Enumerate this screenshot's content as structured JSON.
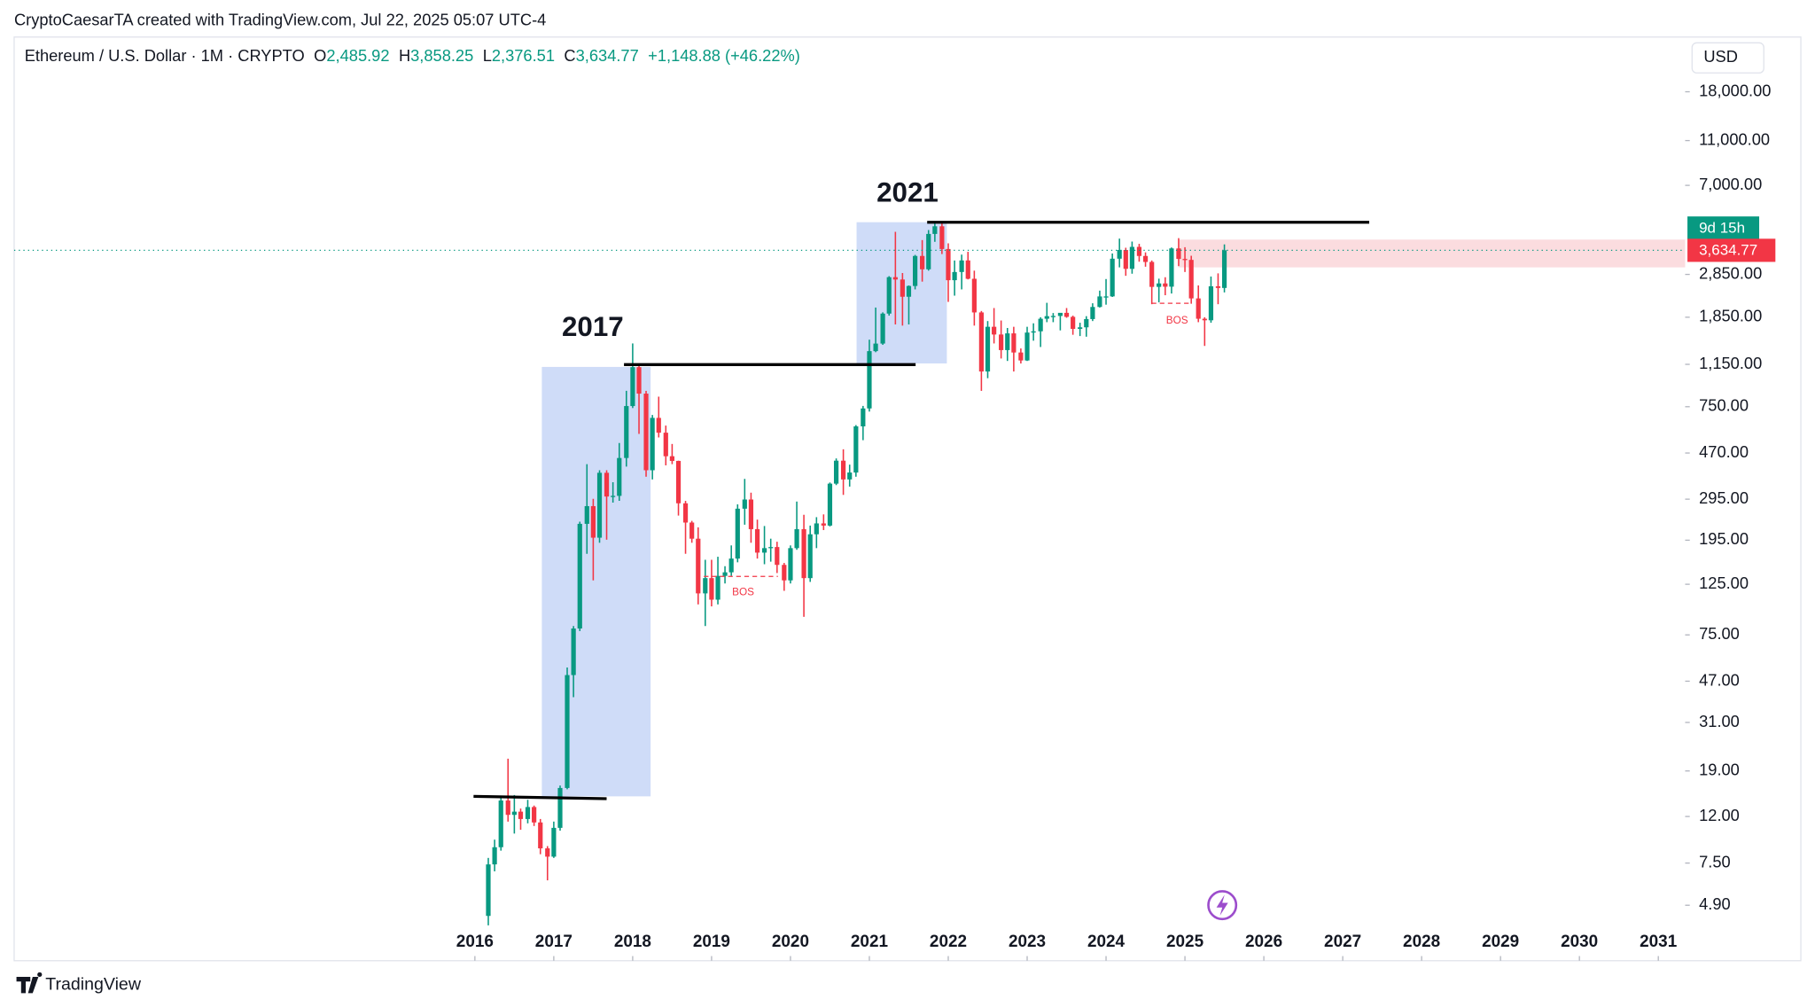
{
  "header": {
    "credit": "CryptoCaesarTA created with TradingView.com, Jul 22, 2025 05:07 UTC-4",
    "symbol": "Ethereum / U.S. Dollar · 1M · CRYPTO",
    "open_key": "O",
    "open": "2,485.92",
    "high_key": "H",
    "high": "3,858.25",
    "low_key": "L",
    "low": "2,376.51",
    "close_key": "C",
    "close": "3,634.77",
    "change": "+1,148.88 (+46.22%)",
    "currency": "USD",
    "footer": "TradingView"
  },
  "chart_data": {
    "type": "candlestick",
    "log_scale": true,
    "grid": false,
    "up_color": "#089981",
    "down_color": "#f23645",
    "xlim": [
      2010.16,
      2031.34
    ],
    "xticks": [
      2016,
      2017,
      2018,
      2019,
      2020,
      2021,
      2022,
      2023,
      2024,
      2025,
      2026,
      2027,
      2028,
      2029,
      2030,
      2031
    ],
    "ylim": [
      2.8,
      31270
    ],
    "yticks": [
      {
        "value": 4.9,
        "label": "4.90"
      },
      {
        "value": 7.5,
        "label": "7.50"
      },
      {
        "value": 12,
        "label": "12.00"
      },
      {
        "value": 19,
        "label": "19.00"
      },
      {
        "value": 31,
        "label": "31.00"
      },
      {
        "value": 47,
        "label": "47.00"
      },
      {
        "value": 75,
        "label": "75.00"
      },
      {
        "value": 125,
        "label": "125.00"
      },
      {
        "value": 195,
        "label": "195.00"
      },
      {
        "value": 295,
        "label": "295.00"
      },
      {
        "value": 470,
        "label": "470.00"
      },
      {
        "value": 750,
        "label": "750.00"
      },
      {
        "value": 1150,
        "label": "1,150.00"
      },
      {
        "value": 1850,
        "label": "1,850.00"
      },
      {
        "value": 2850,
        "label": "2,850.00"
      },
      {
        "value": 7000,
        "label": "7,000.00"
      },
      {
        "value": 11000,
        "label": "11,000.00"
      },
      {
        "value": 18000,
        "label": "18,000.00"
      }
    ],
    "annotations": {
      "cycle_2017": "2017",
      "cycle_2021": "2021",
      "bos_1": "BOS",
      "bos_2": "BOS",
      "countdown": "9d 15h",
      "last_price": "3,634.77"
    },
    "x": [
      2016.17,
      2016.25,
      2016.33,
      2016.42,
      2016.5,
      2016.58,
      2016.67,
      2016.75,
      2016.83,
      2016.92,
      2017,
      2017.08,
      2017.17,
      2017.25,
      2017.33,
      2017.42,
      2017.5,
      2017.58,
      2017.67,
      2017.75,
      2017.83,
      2017.92,
      2018,
      2018.08,
      2018.17,
      2018.25,
      2018.33,
      2018.42,
      2018.5,
      2018.58,
      2018.67,
      2018.75,
      2018.83,
      2018.92,
      2019,
      2019.08,
      2019.17,
      2019.25,
      2019.33,
      2019.42,
      2019.5,
      2019.58,
      2019.67,
      2019.75,
      2019.83,
      2019.92,
      2020,
      2020.08,
      2020.17,
      2020.25,
      2020.33,
      2020.42,
      2020.5,
      2020.58,
      2020.67,
      2020.75,
      2020.83,
      2020.92,
      2021,
      2021.08,
      2021.17,
      2021.25,
      2021.33,
      2021.42,
      2021.5,
      2021.58,
      2021.67,
      2021.75,
      2021.83,
      2021.92,
      2022,
      2022.08,
      2022.17,
      2022.25,
      2022.33,
      2022.42,
      2022.5,
      2022.58,
      2022.67,
      2022.75,
      2022.83,
      2022.92,
      2023,
      2023.08,
      2023.17,
      2023.25,
      2023.33,
      2023.42,
      2023.5,
      2023.58,
      2023.67,
      2023.75,
      2023.83,
      2023.92,
      2024,
      2024.08,
      2024.17,
      2024.25,
      2024.33,
      2024.42,
      2024.5,
      2024.58,
      2024.67,
      2024.75,
      2024.83,
      2024.92,
      2025,
      2025.08,
      2025.17,
      2025.25,
      2025.33,
      2025.42,
      2025.5
    ],
    "ohlc": [
      [
        4.4,
        7.9,
        4.0,
        7.4
      ],
      [
        7.4,
        9.5,
        6.9,
        8.8
      ],
      [
        8.8,
        14.8,
        8.5,
        14.1
      ],
      [
        14.1,
        21.5,
        11.4,
        12.2
      ],
      [
        12.2,
        14.9,
        10.1,
        12.6
      ],
      [
        12.6,
        13.0,
        10.5,
        11.7
      ],
      [
        11.7,
        14.2,
        11.2,
        13.2
      ],
      [
        13.2,
        13.4,
        10.9,
        11.3
      ],
      [
        11.3,
        11.7,
        8.2,
        8.7
      ],
      [
        8.7,
        8.9,
        6.3,
        8.0
      ],
      [
        8.0,
        11.4,
        7.9,
        10.7
      ],
      [
        10.7,
        16.4,
        10.4,
        16.0
      ],
      [
        16.0,
        54,
        15.8,
        50
      ],
      [
        50,
        82,
        40,
        80
      ],
      [
        80,
        235,
        78,
        230
      ],
      [
        230,
        420,
        170,
        275
      ],
      [
        275,
        296,
        130,
        200
      ],
      [
        200,
        395,
        190,
        385
      ],
      [
        385,
        395,
        196,
        303
      ],
      [
        303,
        350,
        285,
        305
      ],
      [
        305,
        520,
        290,
        447
      ],
      [
        447,
        880,
        410,
        755
      ],
      [
        755,
        1420,
        740,
        1118
      ],
      [
        1118,
        1160,
        570,
        856
      ],
      [
        856,
        880,
        370,
        395
      ],
      [
        395,
        690,
        360,
        670
      ],
      [
        670,
        830,
        550,
        577
      ],
      [
        577,
        620,
        415,
        455
      ],
      [
        455,
        515,
        420,
        434
      ],
      [
        434,
        435,
        250,
        283
      ],
      [
        283,
        290,
        170,
        233
      ],
      [
        233,
        237,
        190,
        198
      ],
      [
        198,
        222,
        102,
        114
      ],
      [
        114,
        160,
        82,
        133
      ],
      [
        133,
        160,
        100,
        107
      ],
      [
        107,
        165,
        102,
        136
      ],
      [
        136,
        150,
        126,
        141
      ],
      [
        141,
        185,
        136,
        162
      ],
      [
        162,
        280,
        156,
        268
      ],
      [
        268,
        362,
        228,
        294
      ],
      [
        294,
        315,
        190,
        218
      ],
      [
        218,
        240,
        162,
        172
      ],
      [
        172,
        225,
        153,
        180
      ],
      [
        180,
        198,
        157,
        182
      ],
      [
        182,
        192,
        140,
        152
      ],
      [
        152,
        155,
        117,
        130
      ],
      [
        130,
        185,
        126,
        180
      ],
      [
        180,
        288,
        177,
        218
      ],
      [
        218,
        252,
        90,
        133
      ],
      [
        133,
        226,
        128,
        207
      ],
      [
        207,
        246,
        180,
        231
      ],
      [
        231,
        253,
        216,
        226
      ],
      [
        226,
        349,
        224,
        345
      ],
      [
        345,
        445,
        340,
        435
      ],
      [
        435,
        488,
        308,
        360
      ],
      [
        360,
        418,
        335,
        386
      ],
      [
        386,
        623,
        370,
        615
      ],
      [
        615,
        756,
        535,
        737
      ],
      [
        737,
        1475,
        714,
        1314
      ],
      [
        1314,
        2040,
        1300,
        1418
      ],
      [
        1418,
        1943,
        1400,
        1919
      ],
      [
        1919,
        2800,
        1880,
        2772
      ],
      [
        2772,
        4380,
        1720,
        2707
      ],
      [
        2707,
        2890,
        1700,
        2275
      ],
      [
        2275,
        2550,
        1720,
        2536
      ],
      [
        2536,
        3470,
        2450,
        3433
      ],
      [
        3433,
        4030,
        2650,
        3001
      ],
      [
        3001,
        4460,
        2960,
        4288
      ],
      [
        4288,
        4870,
        3960,
        4631
      ],
      [
        4631,
        4780,
        3500,
        3683
      ],
      [
        3683,
        3900,
        2160,
        2688
      ],
      [
        2688,
        3280,
        2300,
        2920
      ],
      [
        2920,
        3480,
        2450,
        3282
      ],
      [
        3282,
        3580,
        2710,
        2727
      ],
      [
        2727,
        2960,
        1700,
        1942
      ],
      [
        1942,
        1970,
        880,
        1070
      ],
      [
        1070,
        1780,
        1000,
        1680
      ],
      [
        1680,
        2030,
        1420,
        1554
      ],
      [
        1554,
        1790,
        1220,
        1328
      ],
      [
        1328,
        1660,
        1190,
        1572
      ],
      [
        1572,
        1680,
        1070,
        1296
      ],
      [
        1296,
        1350,
        1160,
        1196
      ],
      [
        1196,
        1680,
        1190,
        1585
      ],
      [
        1585,
        1740,
        1460,
        1605
      ],
      [
        1605,
        1850,
        1370,
        1822
      ],
      [
        1822,
        2140,
        1760,
        1870
      ],
      [
        1870,
        1930,
        1760,
        1874
      ],
      [
        1874,
        1930,
        1620,
        1934
      ],
      [
        1934,
        2030,
        1840,
        1857
      ],
      [
        1857,
        1880,
        1550,
        1645
      ],
      [
        1645,
        1750,
        1530,
        1671
      ],
      [
        1671,
        1870,
        1520,
        1816
      ],
      [
        1816,
        2130,
        1780,
        2052
      ],
      [
        2052,
        2420,
        2040,
        2282
      ],
      [
        2282,
        2720,
        2100,
        2283
      ],
      [
        2283,
        3520,
        2270,
        3340
      ],
      [
        3340,
        4090,
        3060,
        3647
      ],
      [
        3647,
        3730,
        2810,
        3015
      ],
      [
        3015,
        3970,
        2870,
        3762
      ],
      [
        3762,
        3880,
        3240,
        3433
      ],
      [
        3433,
        3560,
        3080,
        3232
      ],
      [
        3232,
        3280,
        2110,
        2513
      ],
      [
        2513,
        2730,
        2150,
        2602
      ],
      [
        2602,
        2770,
        2310,
        2518
      ],
      [
        2518,
        3740,
        2350,
        3705
      ],
      [
        3705,
        4110,
        3100,
        3332
      ],
      [
        3332,
        3750,
        2920,
        3300
      ],
      [
        3300,
        3440,
        2120,
        2237
      ],
      [
        2237,
        2550,
        1760,
        1822
      ],
      [
        1822,
        1850,
        1385,
        1794
      ],
      [
        1794,
        2790,
        1750,
        2528
      ],
      [
        2528,
        2880,
        2110,
        2486
      ],
      [
        2485.92,
        3858.25,
        2376.51,
        3634.77
      ]
    ]
  }
}
